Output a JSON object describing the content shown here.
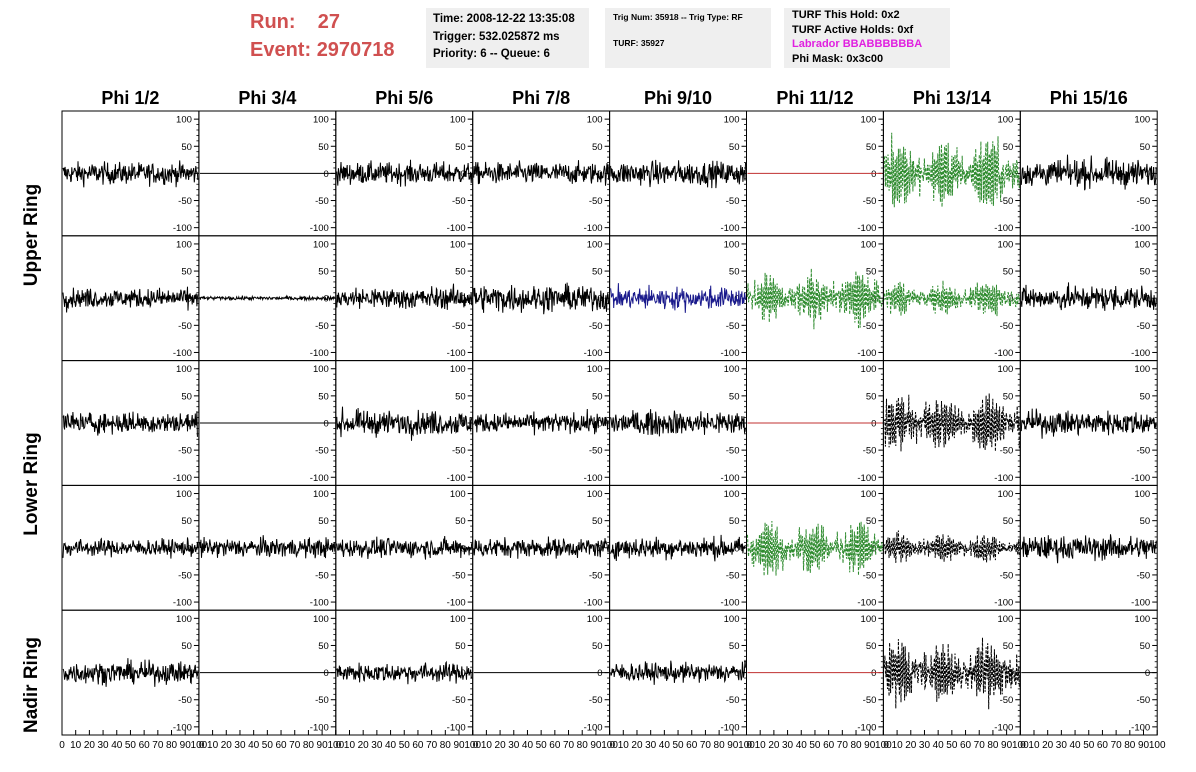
{
  "header": {
    "run_label": "Run:",
    "run_value": "27",
    "event_label": "Event:",
    "event_value": "2970718",
    "time_line": "Time: 2008-12-22 13:35:08",
    "trigger_line": "Trigger: 532.025872 ms",
    "priority_line": "Priority: 6 -- Queue: 6",
    "trig_num_line": "Trig Num: 35918 -- Trig Type: RF",
    "turf_line": "TURF: 35927",
    "turf_hold_line": "TURF This Hold: 0x2",
    "turf_active_line": "TURF Active Holds: 0xf",
    "labrador_line": "Labrador BBABBBBBBA",
    "phi_mask_line": "Phi Mask: 0x3c00"
  },
  "colors": {
    "run_text": "#d05050",
    "labrador_text": "#e020e0",
    "waveform_default": "#000000",
    "waveform_triggered": "#2e8b2e",
    "waveform_blue": "#1a1a8c",
    "masked_flat_line": "#c03030",
    "info_box_bg": "#efefef"
  },
  "rings": [
    "Upper Ring",
    "Upper Ring",
    "Lower Ring",
    "Lower Ring",
    "Nadir Ring"
  ],
  "ring_labels": [
    "Upper Ring",
    "Lower Ring",
    "Nadir Ring"
  ],
  "chart_data": {
    "type": "line",
    "columns": [
      "Phi 1/2",
      "Phi 3/4",
      "Phi 5/6",
      "Phi 7/8",
      "Phi 9/10",
      "Phi 11/12",
      "Phi 13/14",
      "Phi 15/16"
    ],
    "ylim": [
      -115,
      115
    ],
    "xlim": [
      0,
      100
    ],
    "y_ticks": [
      -100,
      -50,
      0,
      50,
      100
    ],
    "y_tick_labels": [
      "-100",
      "-50",
      "0",
      "50",
      "100"
    ],
    "x_ticks": [
      0,
      10,
      20,
      30,
      40,
      50,
      60,
      70,
      80,
      90,
      100
    ],
    "x_tick_labels": [
      "0",
      "10",
      "20",
      "30",
      "40",
      "50",
      "60",
      "70",
      "80",
      "90",
      "100"
    ],
    "grid": false,
    "panel_styles": [
      [
        "noise",
        "flat",
        "noise",
        "noise",
        "noise",
        "flat-red",
        "dashed-green",
        "noise"
      ],
      [
        "noise",
        "small",
        "noise",
        "noise",
        "noise-blue",
        "dashed-green",
        "dashed-green-small",
        "noise"
      ],
      [
        "noise",
        "flat",
        "noise",
        "noise",
        "noise",
        "flat-red",
        "dashed-black",
        "noise"
      ],
      [
        "noise",
        "noise",
        "noise",
        "noise",
        "noise",
        "dashed-green",
        "dashed-black-small",
        "noise"
      ],
      [
        "noise",
        "flat",
        "noise",
        "flat",
        "noise",
        "flat-red",
        "dashed-black",
        "flat"
      ]
    ],
    "panel_amplitudes": [
      [
        18,
        0,
        18,
        18,
        20,
        0,
        55,
        22
      ],
      [
        16,
        3,
        18,
        22,
        18,
        40,
        25,
        20
      ],
      [
        18,
        0,
        20,
        16,
        20,
        0,
        45,
        20
      ],
      [
        14,
        16,
        16,
        16,
        18,
        40,
        22,
        20
      ],
      [
        18,
        0,
        16,
        0,
        16,
        0,
        50,
        0
      ]
    ]
  }
}
